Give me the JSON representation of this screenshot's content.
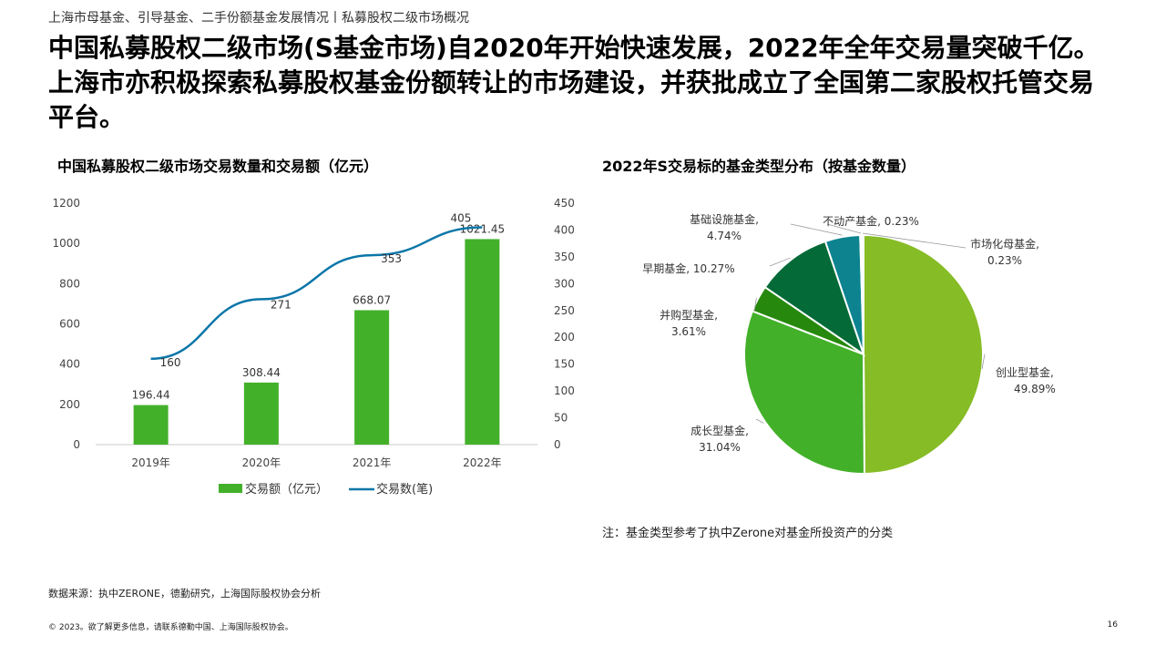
{
  "breadcrumb": "上海市母基金、引导基金、二手份额基金发展情况丨私募股权二级市场概况",
  "headline": "中国私募股权二级市场(S基金市场)自2020年开始快速发展，2022年全年交易量突破千亿。上海市亦积极探索私募股权基金份额转让的市场建设，并获批成立了全国第二家股权托管交易平台。",
  "note": "注：基金类型参考了执中Zerone对基金所投资产的分类",
  "source": "数据来源：执中ZERONE，德勤研究，上海国际股权协会分析",
  "footer": "© 2023。欲了解更多信息，请联系德勤中国、上海国际股权协会。",
  "page_number": "16",
  "colors": {
    "bar": "#43B02A",
    "line": "#0B76A8",
    "pie": [
      "#86BC25",
      "#43B02A",
      "#26890D",
      "#046A38",
      "#0D8390",
      "#0D8390"
    ]
  },
  "chart_data": [
    {
      "type": "bar",
      "title": "中国私募股权二级市场交易数量和交易额（亿元）",
      "categories": [
        "2019年",
        "2020年",
        "2021年",
        "2022年"
      ],
      "y_ticks": [
        "0",
        "200",
        "400",
        "600",
        "800",
        "1000",
        "1200"
      ],
      "y2_ticks": [
        "0",
        "50",
        "100",
        "150",
        "200",
        "250",
        "300",
        "350",
        "400",
        "450"
      ],
      "ylim": [
        0,
        1200
      ],
      "y2lim": [
        0,
        450
      ],
      "legend_position": "bottom",
      "series": [
        {
          "name": "交易额（亿元）",
          "type": "bar",
          "axis": "left",
          "values": [
            196.44,
            308.44,
            668.07,
            1021.45
          ],
          "labels": [
            "196.44",
            "308.44",
            "668.07",
            "1021.45"
          ]
        },
        {
          "name": "交易数(笔)",
          "type": "line",
          "axis": "right",
          "values": [
            160,
            271,
            353,
            405
          ],
          "labels": [
            "160",
            "271",
            "353",
            "405"
          ]
        }
      ]
    },
    {
      "type": "pie",
      "title": "2022年S交易标的基金类型分布（按基金数量）",
      "slices": [
        {
          "label": "创业型基金,",
          "pct_text": "49.89%",
          "value": 49.89
        },
        {
          "label": "成长型基金,",
          "pct_text": "31.04%",
          "value": 31.04
        },
        {
          "label": "并购型基金,",
          "pct_text": "3.61%",
          "value": 3.61
        },
        {
          "label": "早期基金, 10.27%",
          "pct_text": "",
          "value": 10.27
        },
        {
          "label": "基础设施基金,",
          "pct_text": "4.74%",
          "value": 4.74
        },
        {
          "label": "不动产基金, 0.23%",
          "pct_text": "",
          "value": 0.23
        },
        {
          "label": "市场化母基金,",
          "pct_text": "0.23%",
          "value": 0.23
        }
      ]
    }
  ]
}
